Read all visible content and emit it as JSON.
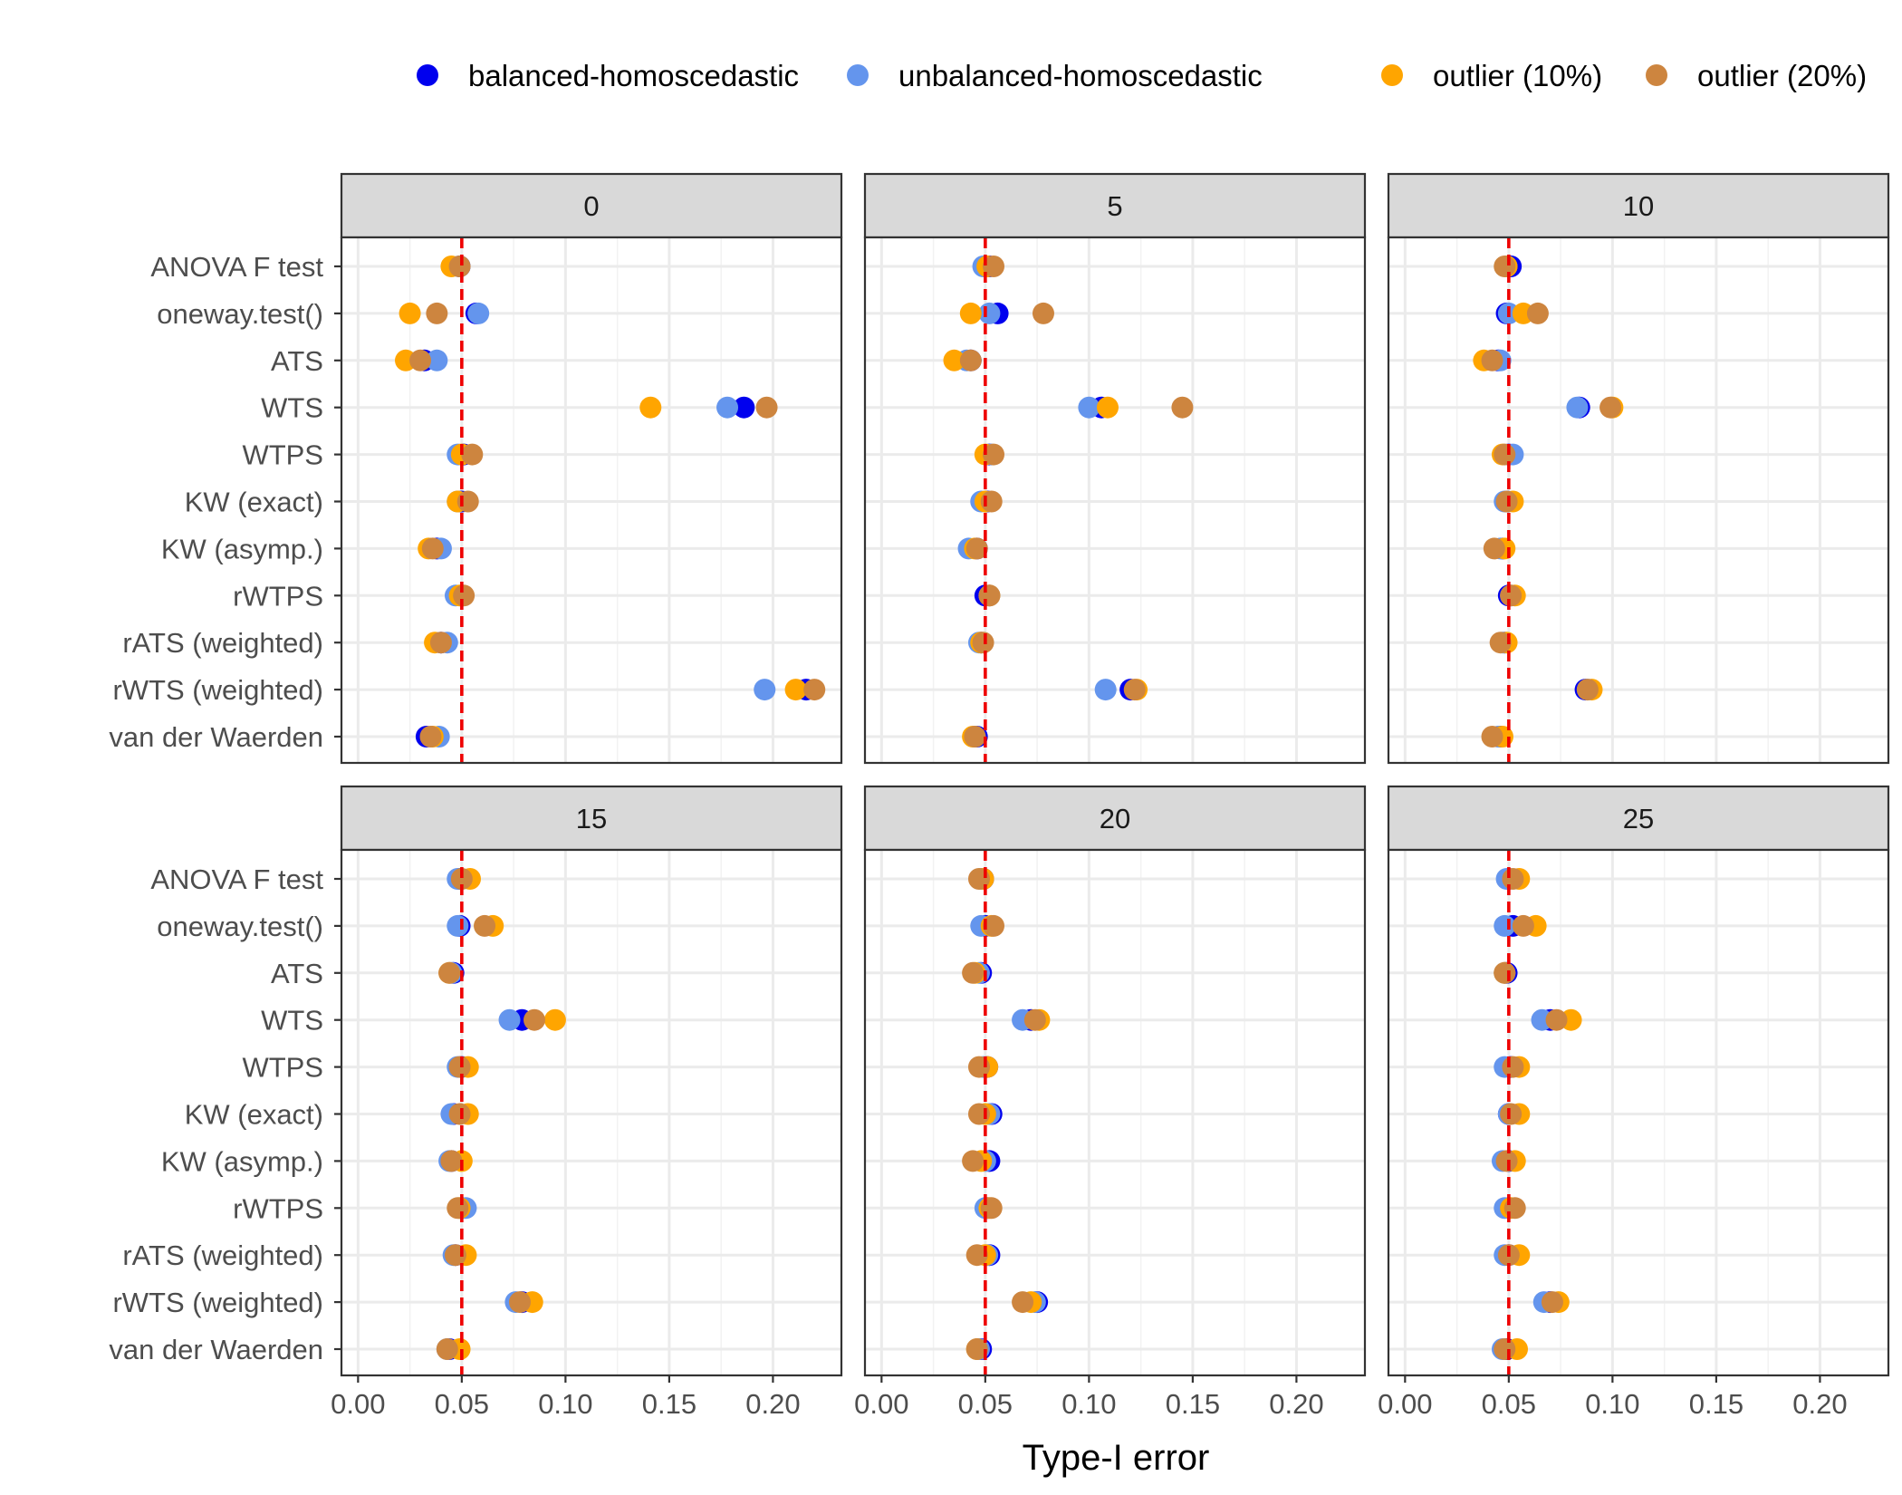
{
  "chart_data": {
    "type": "scatter",
    "facet_variable_levels": [
      "0",
      "5",
      "10",
      "15",
      "20",
      "25"
    ],
    "xlabel": "Type-I error",
    "ylabel": "",
    "xlim": [
      -0.008,
      0.233
    ],
    "x_ticks": [
      "0.00",
      "0.05",
      "0.10",
      "0.15",
      "0.20"
    ],
    "x_tick_values": [
      0,
      0.05,
      0.1,
      0.15,
      0.2
    ],
    "reference_line": {
      "x": 0.05,
      "color": "#EE0000",
      "style": "dashed"
    },
    "grid": true,
    "legend_position": "top",
    "categories": [
      "ANOVA F test",
      "oneway.test()",
      "ATS",
      "WTS",
      "WTPS",
      "KW (exact)",
      "KW (asymp.)",
      "rWTPS",
      "rATS (weighted)",
      "rWTS (weighted)",
      "van der Waerden"
    ],
    "series": [
      {
        "name": "balanced-homoscedastic",
        "color": "#0000EE"
      },
      {
        "name": "unbalanced-homoscedastic",
        "color": "#6495ED"
      },
      {
        "name": "outlier (10%)",
        "color": "#FFA500"
      },
      {
        "name": "outlier (20%)",
        "color": "#CD853F"
      }
    ],
    "panels": [
      {
        "label": "0",
        "values": {
          "balanced-homoscedastic": [
            0.049,
            0.057,
            0.032,
            0.186,
            0.051,
            0.05,
            0.038,
            0.05,
            0.04,
            0.216,
            0.033
          ],
          "unbalanced-homoscedastic": [
            0.049,
            0.058,
            0.038,
            0.178,
            0.048,
            0.048,
            0.04,
            0.047,
            0.043,
            0.196,
            0.039
          ],
          "outlier (10%)": [
            0.045,
            0.025,
            0.023,
            0.141,
            0.05,
            0.048,
            0.034,
            0.049,
            0.037,
            0.211,
            0.036
          ],
          "outlier (20%)": [
            0.049,
            0.038,
            0.03,
            0.197,
            0.055,
            0.053,
            0.036,
            0.051,
            0.04,
            0.22,
            0.035
          ]
        }
      },
      {
        "label": "5",
        "values": {
          "balanced-homoscedastic": [
            0.052,
            0.056,
            0.043,
            0.106,
            0.052,
            0.051,
            0.046,
            0.05,
            0.048,
            0.12,
            0.046
          ],
          "unbalanced-homoscedastic": [
            0.049,
            0.052,
            0.041,
            0.1,
            0.053,
            0.048,
            0.042,
            0.052,
            0.047,
            0.108,
            0.045
          ],
          "outlier (10%)": [
            0.051,
            0.043,
            0.035,
            0.109,
            0.05,
            0.05,
            0.045,
            0.052,
            0.048,
            0.123,
            0.044
          ],
          "outlier (20%)": [
            0.054,
            0.078,
            0.043,
            0.145,
            0.054,
            0.053,
            0.046,
            0.052,
            0.049,
            0.122,
            0.045
          ]
        }
      },
      {
        "label": "10",
        "values": {
          "balanced-homoscedastic": [
            0.051,
            0.049,
            0.045,
            0.084,
            0.05,
            0.049,
            0.047,
            0.05,
            0.048,
            0.087,
            0.046
          ],
          "unbalanced-homoscedastic": [
            0.049,
            0.05,
            0.046,
            0.083,
            0.052,
            0.048,
            0.046,
            0.051,
            0.047,
            0.088,
            0.045
          ],
          "outlier (10%)": [
            0.049,
            0.057,
            0.038,
            0.1,
            0.047,
            0.052,
            0.048,
            0.053,
            0.049,
            0.09,
            0.047
          ],
          "outlier (20%)": [
            0.048,
            0.064,
            0.042,
            0.099,
            0.048,
            0.049,
            0.043,
            0.051,
            0.046,
            0.088,
            0.042
          ]
        }
      },
      {
        "label": "15",
        "values": {
          "balanced-homoscedastic": [
            0.049,
            0.049,
            0.046,
            0.079,
            0.05,
            0.046,
            0.045,
            0.05,
            0.047,
            0.079,
            0.044
          ],
          "unbalanced-homoscedastic": [
            0.048,
            0.048,
            0.045,
            0.073,
            0.048,
            0.045,
            0.044,
            0.052,
            0.046,
            0.076,
            0.043
          ],
          "outlier (10%)": [
            0.054,
            0.065,
            0.044,
            0.095,
            0.053,
            0.053,
            0.05,
            0.049,
            0.052,
            0.084,
            0.049
          ],
          "outlier (20%)": [
            0.05,
            0.061,
            0.044,
            0.085,
            0.049,
            0.049,
            0.045,
            0.048,
            0.047,
            0.078,
            0.043
          ]
        }
      },
      {
        "label": "20",
        "values": {
          "balanced-homoscedastic": [
            0.049,
            0.05,
            0.048,
            0.072,
            0.051,
            0.053,
            0.052,
            0.051,
            0.052,
            0.075,
            0.048
          ],
          "unbalanced-homoscedastic": [
            0.048,
            0.048,
            0.047,
            0.068,
            0.049,
            0.052,
            0.05,
            0.05,
            0.051,
            0.074,
            0.047
          ],
          "outlier (10%)": [
            0.049,
            0.053,
            0.045,
            0.076,
            0.051,
            0.05,
            0.048,
            0.052,
            0.05,
            0.072,
            0.046
          ],
          "outlier (20%)": [
            0.047,
            0.054,
            0.044,
            0.074,
            0.047,
            0.047,
            0.044,
            0.053,
            0.046,
            0.068,
            0.046
          ]
        }
      },
      {
        "label": "25",
        "values": {
          "balanced-homoscedastic": [
            0.05,
            0.052,
            0.049,
            0.07,
            0.051,
            0.05,
            0.05,
            0.05,
            0.05,
            0.07,
            0.049
          ],
          "unbalanced-homoscedastic": [
            0.049,
            0.048,
            0.048,
            0.066,
            0.048,
            0.05,
            0.047,
            0.048,
            0.048,
            0.067,
            0.047
          ],
          "outlier (10%)": [
            0.055,
            0.063,
            0.048,
            0.08,
            0.055,
            0.055,
            0.053,
            0.051,
            0.055,
            0.074,
            0.054
          ],
          "outlier (20%)": [
            0.052,
            0.057,
            0.048,
            0.073,
            0.052,
            0.051,
            0.049,
            0.053,
            0.05,
            0.071,
            0.048
          ]
        }
      }
    ]
  }
}
